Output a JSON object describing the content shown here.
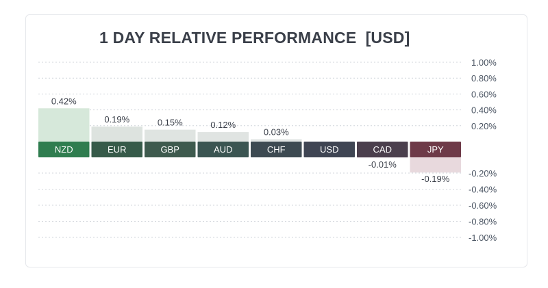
{
  "chart_data": {
    "type": "bar",
    "title": "1 DAY RELATIVE PERFORMANCE  [USD]",
    "categories": [
      "NZD",
      "EUR",
      "GBP",
      "AUD",
      "CHF",
      "USD",
      "CAD",
      "JPY"
    ],
    "values": [
      0.42,
      0.19,
      0.15,
      0.12,
      0.03,
      0.0,
      -0.01,
      -0.19
    ],
    "value_labels": [
      "0.42%",
      "0.19%",
      "0.15%",
      "0.12%",
      "0.03%",
      "",
      "-0.01%",
      "-0.19%"
    ],
    "y_ticks_positive": [
      "1.00%",
      "0.80%",
      "0.60%",
      "0.40%",
      "0.20%"
    ],
    "y_ticks_negative": [
      "-0.20%",
      "-0.40%",
      "-0.60%",
      "-0.80%",
      "-1.00%"
    ],
    "ylim": [
      -1.0,
      1.0
    ],
    "y_axis_position": "right",
    "grid": true,
    "label_colors": [
      "#2f7d4f",
      "#365a49",
      "#3e5a4e",
      "#3b5552",
      "#3d4a52",
      "#3f4553",
      "#4b3f4d",
      "#6e3a48"
    ],
    "bar_colors": [
      "#d6e8da",
      "#dde3df",
      "#dfe4e1",
      "#e0e4e2",
      "#e1e5e4",
      "#e5e7eb",
      "#ece6ea",
      "#e8d9dd"
    ]
  }
}
